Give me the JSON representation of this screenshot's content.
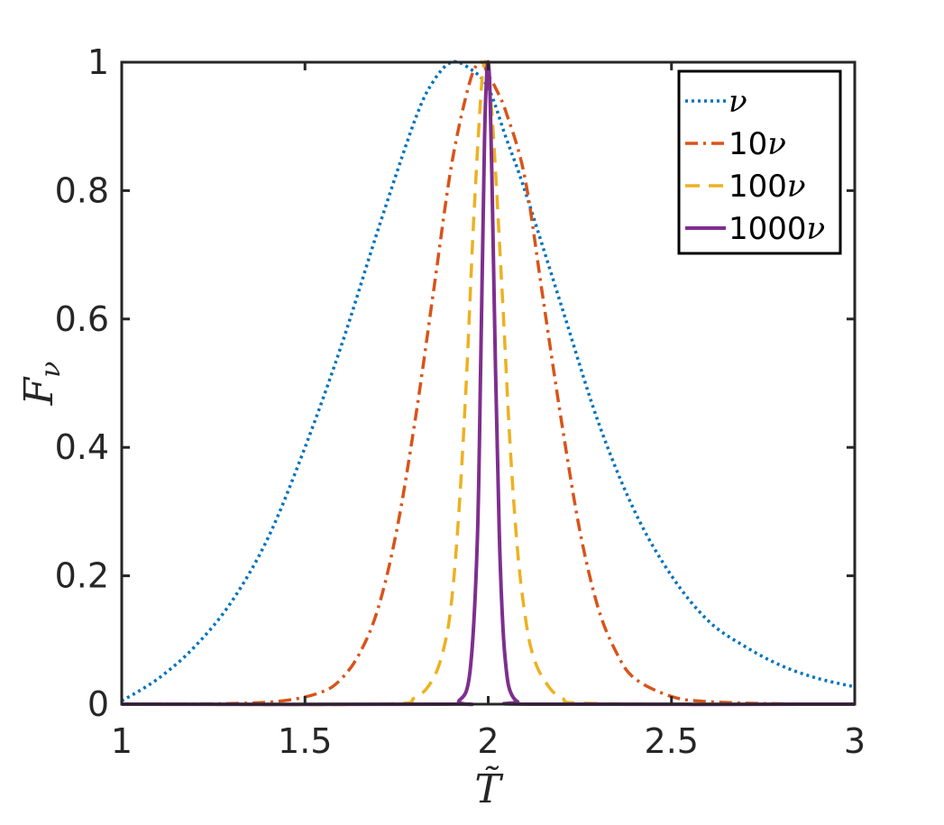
{
  "chart_data": {
    "type": "line",
    "xlabel": "T̃",
    "ylabel": "F",
    "ylabel_sub": "ν",
    "xlim": [
      1,
      3
    ],
    "ylim": [
      0,
      1
    ],
    "x_ticks": [
      {
        "value": 1,
        "label": "1"
      },
      {
        "value": 1.5,
        "label": "1.5"
      },
      {
        "value": 2,
        "label": "2"
      },
      {
        "value": 2.5,
        "label": "2.5"
      },
      {
        "value": 3,
        "label": "3"
      }
    ],
    "y_ticks": [
      {
        "value": 0,
        "label": "0"
      },
      {
        "value": 0.2,
        "label": "0.2"
      },
      {
        "value": 0.4,
        "label": "0.4"
      },
      {
        "value": 0.6,
        "label": "0.6"
      },
      {
        "value": 0.8,
        "label": "0.8"
      },
      {
        "value": 1,
        "label": "1"
      }
    ],
    "grid": false,
    "legend_position": "top-right",
    "series": [
      {
        "name_prefix": "",
        "name_symbol": "ν",
        "color": "#0072BD",
        "style": "dotted",
        "x": [
          1.0,
          1.1,
          1.2,
          1.3,
          1.4,
          1.5,
          1.6,
          1.7,
          1.8,
          1.85,
          1.9,
          1.95,
          2.0,
          2.05,
          2.1,
          2.2,
          2.3,
          2.4,
          2.5,
          2.6,
          2.7,
          2.8,
          2.9,
          3.0
        ],
        "y": [
          0.005,
          0.04,
          0.09,
          0.16,
          0.26,
          0.4,
          0.56,
          0.74,
          0.91,
          0.97,
          1.0,
          0.99,
          0.96,
          0.88,
          0.8,
          0.62,
          0.44,
          0.3,
          0.2,
          0.13,
          0.09,
          0.06,
          0.04,
          0.027
        ]
      },
      {
        "name_prefix": "10",
        "name_symbol": "ν",
        "color": "#D95319",
        "style": "dashdot",
        "x": [
          1.0,
          1.3,
          1.45,
          1.55,
          1.6,
          1.65,
          1.7,
          1.75,
          1.8,
          1.85,
          1.9,
          1.95,
          1.98,
          2.0,
          2.02,
          2.05,
          2.1,
          2.15,
          2.2,
          2.25,
          2.3,
          2.35,
          2.4,
          2.5,
          2.6,
          2.8,
          3.0
        ],
        "y": [
          0.0,
          0.001,
          0.006,
          0.02,
          0.04,
          0.08,
          0.15,
          0.27,
          0.44,
          0.64,
          0.84,
          0.97,
          1.0,
          0.98,
          0.96,
          0.92,
          0.82,
          0.63,
          0.44,
          0.27,
          0.15,
          0.08,
          0.04,
          0.012,
          0.004,
          0.0005,
          0.0
        ]
      },
      {
        "name_prefix": "100",
        "name_symbol": "ν",
        "color": "#EDB120",
        "style": "dashed",
        "x": [
          1.0,
          1.7,
          1.8,
          1.85,
          1.88,
          1.9,
          1.92,
          1.94,
          1.96,
          1.98,
          1.99,
          2.0,
          2.01,
          2.02,
          2.04,
          2.06,
          2.08,
          2.1,
          2.12,
          2.15,
          2.2,
          2.3,
          3.0
        ],
        "y": [
          0.0,
          0.0,
          0.01,
          0.04,
          0.09,
          0.16,
          0.3,
          0.5,
          0.75,
          0.95,
          1.0,
          0.98,
          0.92,
          0.83,
          0.62,
          0.4,
          0.24,
          0.14,
          0.08,
          0.04,
          0.01,
          0.001,
          0.0
        ]
      },
      {
        "name_prefix": "1000",
        "name_symbol": "ν",
        "color": "#7E2F8E",
        "style": "solid",
        "x": [
          1.0,
          1.88,
          1.92,
          1.95,
          1.97,
          1.98,
          1.99,
          1.995,
          2.0,
          2.005,
          2.01,
          2.02,
          2.03,
          2.04,
          2.05,
          2.06,
          2.08,
          2.12,
          3.0
        ],
        "y": [
          0.0,
          0.0,
          0.005,
          0.05,
          0.25,
          0.55,
          0.88,
          0.97,
          1.0,
          0.95,
          0.82,
          0.52,
          0.27,
          0.12,
          0.05,
          0.02,
          0.004,
          0.0,
          0.0
        ]
      }
    ]
  }
}
